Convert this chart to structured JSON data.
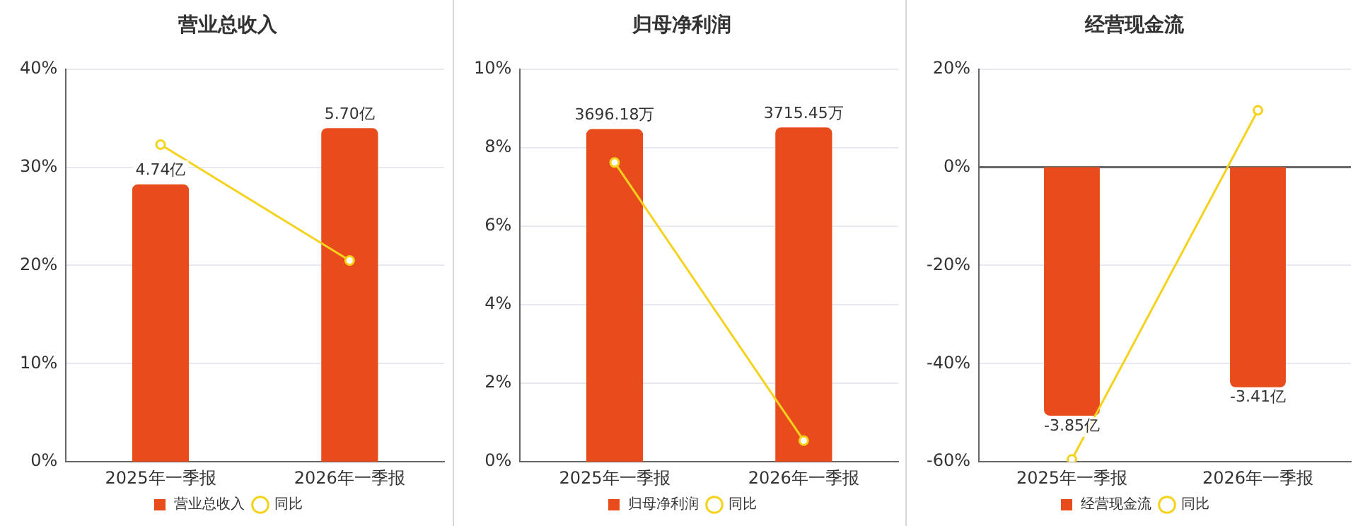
{
  "chart_data": [
    {
      "type": "bar",
      "title": "营业总收入",
      "categories": [
        "2025年一季报",
        "2026年一季报"
      ],
      "series": [
        {
          "name": "营业总收入",
          "color": "#e84c1c",
          "axis": "y2",
          "values": [
            4.74,
            5.7
          ],
          "value_labels": [
            "4.74亿",
            "5.70亿"
          ]
        },
        {
          "name": "同比",
          "type": "line",
          "color": "#f5d21c",
          "axis": "y",
          "values": [
            32.3,
            20.5
          ]
        }
      ],
      "ylim": [
        0,
        40
      ],
      "yticks": [
        {
          "value": 0,
          "label": "0%"
        },
        {
          "value": 10,
          "label": "10%"
        },
        {
          "value": 20,
          "label": "20%"
        },
        {
          "value": 30,
          "label": "30%"
        },
        {
          "value": 40,
          "label": "40%"
        }
      ],
      "y2lim": [
        0,
        6.71
      ],
      "grid": "y",
      "legend": "bottom",
      "marker": "circle"
    },
    {
      "type": "bar",
      "title": "归母净利润",
      "categories": [
        "2025年一季报",
        "2026年一季报"
      ],
      "series": [
        {
          "name": "归母净利润",
          "color": "#e84c1c",
          "axis": "y2",
          "values": [
            3696.18,
            3715.45
          ],
          "value_labels": [
            "3696.18万",
            "3715.45万"
          ]
        },
        {
          "name": "同比",
          "type": "line",
          "color": "#f5d21c",
          "axis": "y",
          "values": [
            7.62,
            0.54
          ]
        }
      ],
      "ylim": [
        0,
        10
      ],
      "yticks": [
        {
          "value": 0,
          "label": "0%"
        },
        {
          "value": 2,
          "label": "2%"
        },
        {
          "value": 4,
          "label": "4%"
        },
        {
          "value": 6,
          "label": "6%"
        },
        {
          "value": 8,
          "label": "8%"
        },
        {
          "value": 10,
          "label": "10%"
        }
      ],
      "y2lim": [
        0,
        4364
      ],
      "grid": "y",
      "legend": "bottom",
      "marker": "circle"
    },
    {
      "type": "bar",
      "title": "经营现金流",
      "categories": [
        "2025年一季报",
        "2026年一季报"
      ],
      "series": [
        {
          "name": "经营现金流",
          "color": "#e84c1c",
          "axis": "y2",
          "values": [
            -3.85,
            -3.41
          ],
          "value_labels": [
            "-3.85亿",
            "-3.41亿"
          ]
        },
        {
          "name": "同比",
          "type": "line",
          "color": "#f5d21c",
          "axis": "y",
          "values": [
            -59.5,
            11.6
          ]
        }
      ],
      "ylim": [
        -60,
        20
      ],
      "yticks": [
        {
          "value": -60,
          "label": "-60%"
        },
        {
          "value": -40,
          "label": "-40%"
        },
        {
          "value": -20,
          "label": "-20%"
        },
        {
          "value": 0,
          "label": "0%"
        },
        {
          "value": 20,
          "label": "20%"
        }
      ],
      "y2lim": [
        -4.565,
        1.52
      ],
      "grid": "y",
      "legend": "bottom",
      "marker": "circle"
    }
  ]
}
